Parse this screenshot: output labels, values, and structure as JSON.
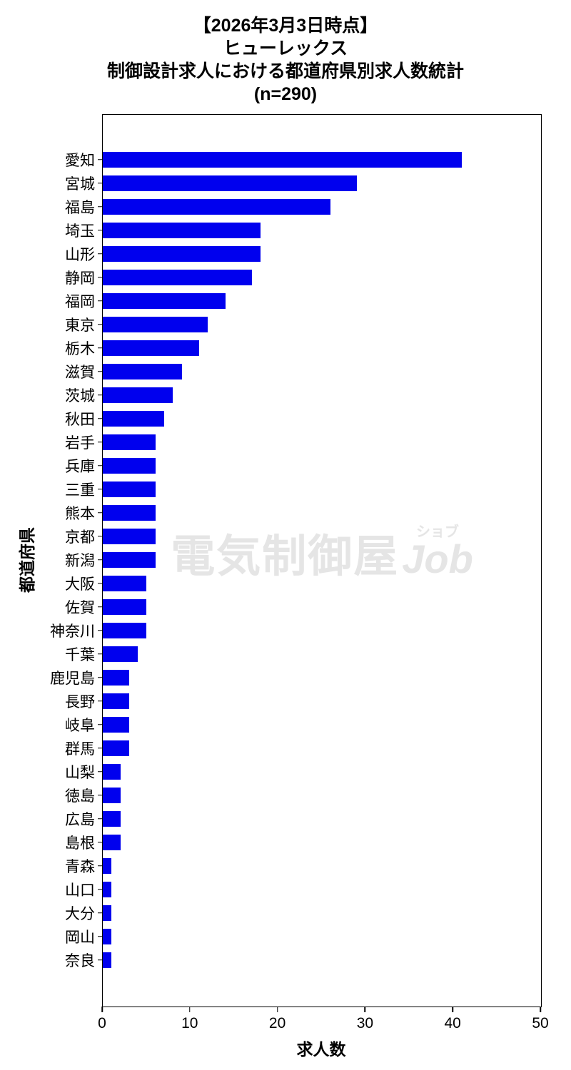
{
  "title": {
    "line1": "【2026年3月3日時点】",
    "line2": "ヒューレックス",
    "line3": "制御設計求人における都道府県別求人数統計",
    "line4": "(n=290)"
  },
  "watermark": {
    "main": "電気制御屋",
    "ruby": "ショブ",
    "latin": "Job"
  },
  "chart_data": {
    "type": "bar",
    "orientation": "horizontal",
    "title": "【2026年3月3日時点】 ヒューレックス 制御設計求人における都道府県別求人数統計 (n=290)",
    "xlabel": "求人数",
    "ylabel": "都道府県",
    "xlim": [
      0,
      50
    ],
    "xticks": [
      0,
      10,
      20,
      30,
      40,
      50
    ],
    "grid": false,
    "legend": false,
    "bar_color": "#0000ee",
    "n_total": 290,
    "categories": [
      "愛知",
      "宮城",
      "福島",
      "埼玉",
      "山形",
      "静岡",
      "福岡",
      "東京",
      "栃木",
      "滋賀",
      "茨城",
      "秋田",
      "岩手",
      "兵庫",
      "三重",
      "熊本",
      "京都",
      "新潟",
      "大阪",
      "佐賀",
      "神奈川",
      "千葉",
      "鹿児島",
      "長野",
      "岐阜",
      "群馬",
      "山梨",
      "徳島",
      "広島",
      "島根",
      "青森",
      "山口",
      "大分",
      "岡山",
      "奈良"
    ],
    "values": [
      41,
      29,
      26,
      18,
      18,
      17,
      14,
      12,
      11,
      9,
      8,
      7,
      6,
      6,
      6,
      6,
      6,
      6,
      5,
      5,
      5,
      4,
      3,
      3,
      3,
      3,
      2,
      2,
      2,
      2,
      1,
      1,
      1,
      1,
      1
    ]
  }
}
